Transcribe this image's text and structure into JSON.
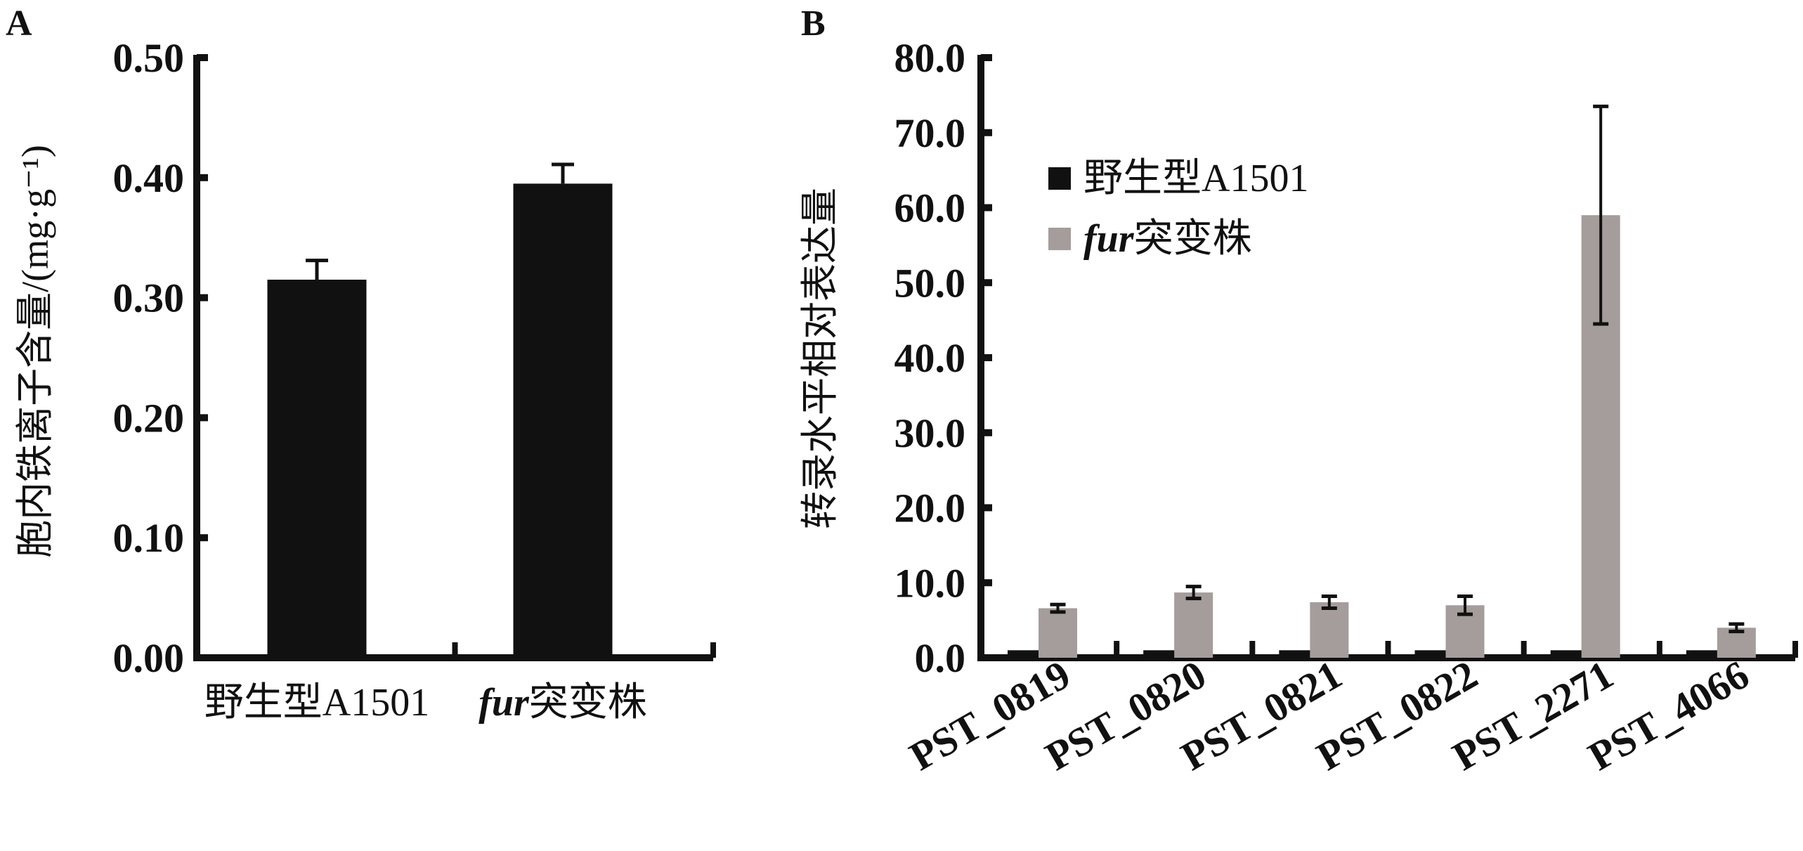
{
  "chart_data": [
    {
      "panel": "A",
      "type": "bar",
      "ylabel": "胞内铁离子含量/(mg·g⁻¹)",
      "ylim": [
        0,
        0.5
      ],
      "yticks": [
        "0.00",
        "0.10",
        "0.20",
        "0.30",
        "0.40",
        "0.50"
      ],
      "categories": [
        "野生型A1501",
        "fur突变株"
      ],
      "category_italic_prefix": [
        "",
        "fur"
      ],
      "category_suffix": [
        "野生型A1501",
        "突变株"
      ],
      "values": [
        0.315,
        0.395
      ],
      "errors": [
        0.016,
        0.016
      ],
      "color": "#111111"
    },
    {
      "panel": "B",
      "type": "bar",
      "ylabel": "转录水平相对表达量",
      "ylim": [
        0,
        80
      ],
      "yticks": [
        "0.0",
        "10.0",
        "20.0",
        "30.0",
        "40.0",
        "50.0",
        "60.0",
        "70.0",
        "80.0"
      ],
      "categories": [
        "PST_0819",
        "PST_0820",
        "PST_0821",
        "PST_0822",
        "PST_2271",
        "PST_4066"
      ],
      "legend": {
        "position": "top-left",
        "entries": [
          "野生型A1501",
          "突变株"
        ],
        "italic_prefix": [
          "",
          "fur"
        ]
      },
      "series": [
        {
          "name": "野生型A1501",
          "color": "#111111",
          "values": [
            1.0,
            1.0,
            1.0,
            1.0,
            1.0,
            1.0
          ],
          "errors": [
            0,
            0,
            0,
            0,
            0.3,
            0
          ]
        },
        {
          "name": "fur突变株",
          "color": "#a59d9b",
          "values": [
            6.6,
            8.7,
            7.4,
            7.0,
            59.0,
            4.0
          ],
          "errors": [
            0.5,
            0.8,
            0.8,
            1.2,
            14.5,
            0.5
          ]
        }
      ]
    }
  ]
}
